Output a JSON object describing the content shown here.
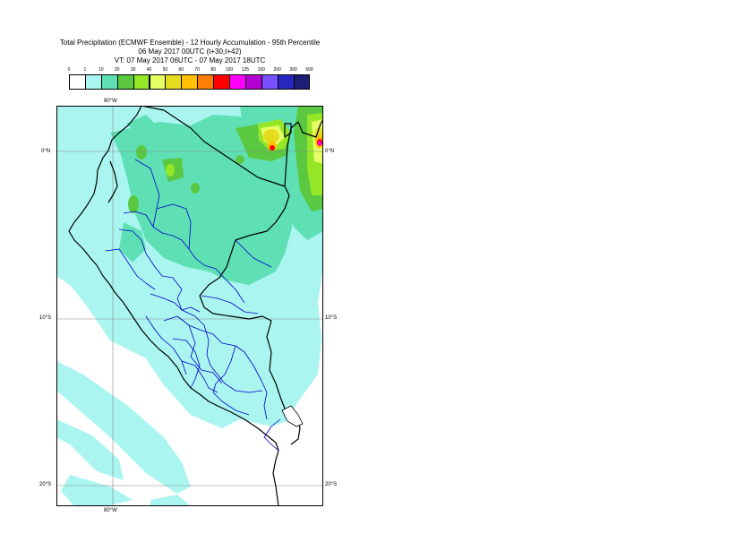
{
  "title": {
    "line1": "Total Precipitation (ECMWF Ensemble) - 12 Hourly Accumulation - 95th Percentile",
    "line2": "06 May 2017 00UTC (t+30,t+42)",
    "line3": "VT: 07 May 2017 06UTC - 07 May 2017 18UTC"
  },
  "legend": {
    "labels": [
      "0",
      "1",
      "10",
      "20",
      "30",
      "40",
      "50",
      "60",
      "70",
      "80",
      "100",
      "125",
      "150",
      "200",
      "300",
      "500"
    ],
    "colors": [
      "#ffffff",
      "#aaf5f0",
      "#5fe0b4",
      "#5ac840",
      "#96e628",
      "#e6ff64",
      "#e6dc1e",
      "#ffc000",
      "#ff7f00",
      "#ff0000",
      "#ff00ff",
      "#b400d2",
      "#7850ff",
      "#2828be",
      "#1e1e78"
    ]
  },
  "map": {
    "colors": {
      "ocean_light": "#aaf5f0",
      "rain_medium": "#5fe0b4",
      "rain_green": "#5ac840",
      "rain_yellowgreen": "#96e628",
      "rain_yellow": "#e6ff64",
      "rain_gold": "#e6dc1e",
      "rain_orange": "#ffc000",
      "rain_red": "#ff0000",
      "rain_magenta": "#ff00ff",
      "country_border": "#000000",
      "region_border": "#0000c8",
      "gridline": "#888888"
    },
    "gridlines": {
      "lon_top": "80°W",
      "lon_bottom": "80°W",
      "lat_labels": [
        "0°N",
        "10°S",
        "20°S"
      ]
    }
  }
}
